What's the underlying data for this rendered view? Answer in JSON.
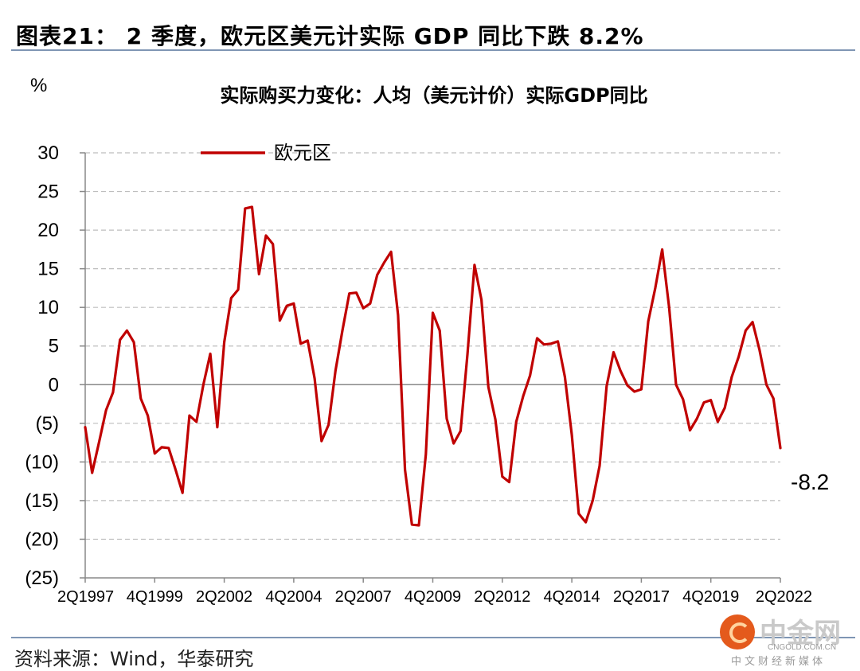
{
  "header": {
    "title": "图表21： 2 季度，欧元区美元计实际 GDP 同比下跌 8.2%"
  },
  "footer": {
    "source": "资料来源：Wind，华泰研究"
  },
  "watermark": {
    "name": "中金网",
    "url": "CNGOLD.COM.CN",
    "tagline": "中文财经新媒体"
  },
  "chart_data": {
    "type": "line",
    "title": "实际购买力变化：人均（美元计价）实际GDP同比",
    "ylabel": "%",
    "ylim": [
      -25,
      30
    ],
    "yticks": [
      {
        "value": 30,
        "label": "30"
      },
      {
        "value": 25,
        "label": "25"
      },
      {
        "value": 20,
        "label": "20"
      },
      {
        "value": 15,
        "label": "15"
      },
      {
        "value": 10,
        "label": "10"
      },
      {
        "value": 5,
        "label": "5"
      },
      {
        "value": 0,
        "label": "0"
      },
      {
        "value": -5,
        "label": "(5)"
      },
      {
        "value": -10,
        "label": "(10)"
      },
      {
        "value": -15,
        "label": "(15)"
      },
      {
        "value": -20,
        "label": "(20)"
      },
      {
        "value": -25,
        "label": "(25)"
      }
    ],
    "xticks": [
      "2Q1997",
      "4Q1999",
      "2Q2002",
      "4Q2004",
      "2Q2007",
      "4Q2009",
      "2Q2012",
      "4Q2014",
      "2Q2017",
      "4Q2019",
      "2Q2022"
    ],
    "grid": "horizontal dashed",
    "legend_position": "top-left",
    "series": [
      {
        "name": "欧元区",
        "color": "#c00000",
        "values": [
          -5.5,
          -11.4,
          -7.4,
          -3.3,
          -1.0,
          5.8,
          7.0,
          5.5,
          -1.8,
          -4.0,
          -8.9,
          -8.1,
          -8.2,
          -11.0,
          -14.0,
          -4.0,
          -4.8,
          0.0,
          4.0,
          -5.5,
          5.5,
          11.2,
          12.3,
          22.8,
          23.0,
          14.3,
          19.3,
          18.2,
          8.3,
          10.2,
          10.5,
          5.3,
          5.7,
          0.8,
          -7.3,
          -5.2,
          1.8,
          7.0,
          11.8,
          11.9,
          9.9,
          10.5,
          14.2,
          15.8,
          17.2,
          9.0,
          -11.0,
          -18.1,
          -18.2,
          -9.0,
          9.3,
          7.0,
          -4.4,
          -7.6,
          -6.0,
          4.0,
          15.5,
          11.0,
          -0.3,
          -4.5,
          -11.9,
          -12.6,
          -4.8,
          -1.5,
          1.2,
          6.0,
          5.2,
          5.3,
          5.6,
          1.0,
          -6.5,
          -16.7,
          -17.8,
          -15.0,
          -10.5,
          -0.2,
          4.2,
          1.8,
          -0.1,
          -0.9,
          -0.6,
          8.2,
          12.5,
          17.5,
          10.0,
          0.0,
          -1.9,
          -5.9,
          -4.4,
          -2.3,
          -2.0,
          -4.8,
          -3.0,
          1.0,
          3.6,
          7.0,
          8.1,
          4.5,
          0.0,
          -1.8,
          -8.2
        ]
      }
    ],
    "annotation": "-8.2"
  }
}
